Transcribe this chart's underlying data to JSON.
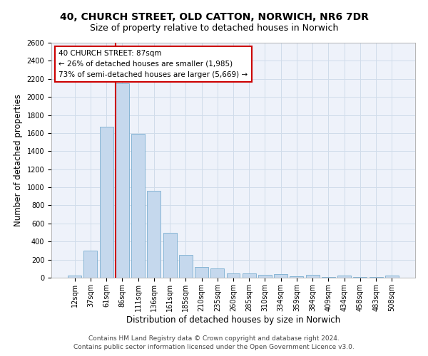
{
  "title1": "40, CHURCH STREET, OLD CATTON, NORWICH, NR6 7DR",
  "title2": "Size of property relative to detached houses in Norwich",
  "xlabel": "Distribution of detached houses by size in Norwich",
  "ylabel": "Number of detached properties",
  "categories": [
    "12sqm",
    "37sqm",
    "61sqm",
    "86sqm",
    "111sqm",
    "136sqm",
    "161sqm",
    "185sqm",
    "210sqm",
    "235sqm",
    "260sqm",
    "285sqm",
    "310sqm",
    "334sqm",
    "359sqm",
    "384sqm",
    "409sqm",
    "434sqm",
    "458sqm",
    "483sqm",
    "508sqm"
  ],
  "values": [
    25,
    300,
    1670,
    2150,
    1590,
    960,
    500,
    250,
    120,
    100,
    50,
    50,
    30,
    40,
    15,
    30,
    10,
    20,
    5,
    10,
    25
  ],
  "bar_color": "#c5d8ed",
  "bar_edge_color": "#7aaed0",
  "grid_color": "#d0dcea",
  "bg_color": "#eef2fa",
  "property_label": "40 CHURCH STREET: 87sqm",
  "annotation_line1": "← 26% of detached houses are smaller (1,985)",
  "annotation_line2": "73% of semi-detached houses are larger (5,669) →",
  "annotation_box_color": "#ffffff",
  "annotation_box_edge": "#cc0000",
  "vline_color": "#cc0000",
  "ylim": [
    0,
    2600
  ],
  "yticks": [
    0,
    200,
    400,
    600,
    800,
    1000,
    1200,
    1400,
    1600,
    1800,
    2000,
    2200,
    2400,
    2600
  ],
  "footer1": "Contains HM Land Registry data © Crown copyright and database right 2024.",
  "footer2": "Contains public sector information licensed under the Open Government Licence v3.0.",
  "title1_fontsize": 10,
  "title2_fontsize": 9,
  "axis_label_fontsize": 8.5,
  "tick_fontsize": 7,
  "annotation_fontsize": 7.5,
  "footer_fontsize": 6.5
}
